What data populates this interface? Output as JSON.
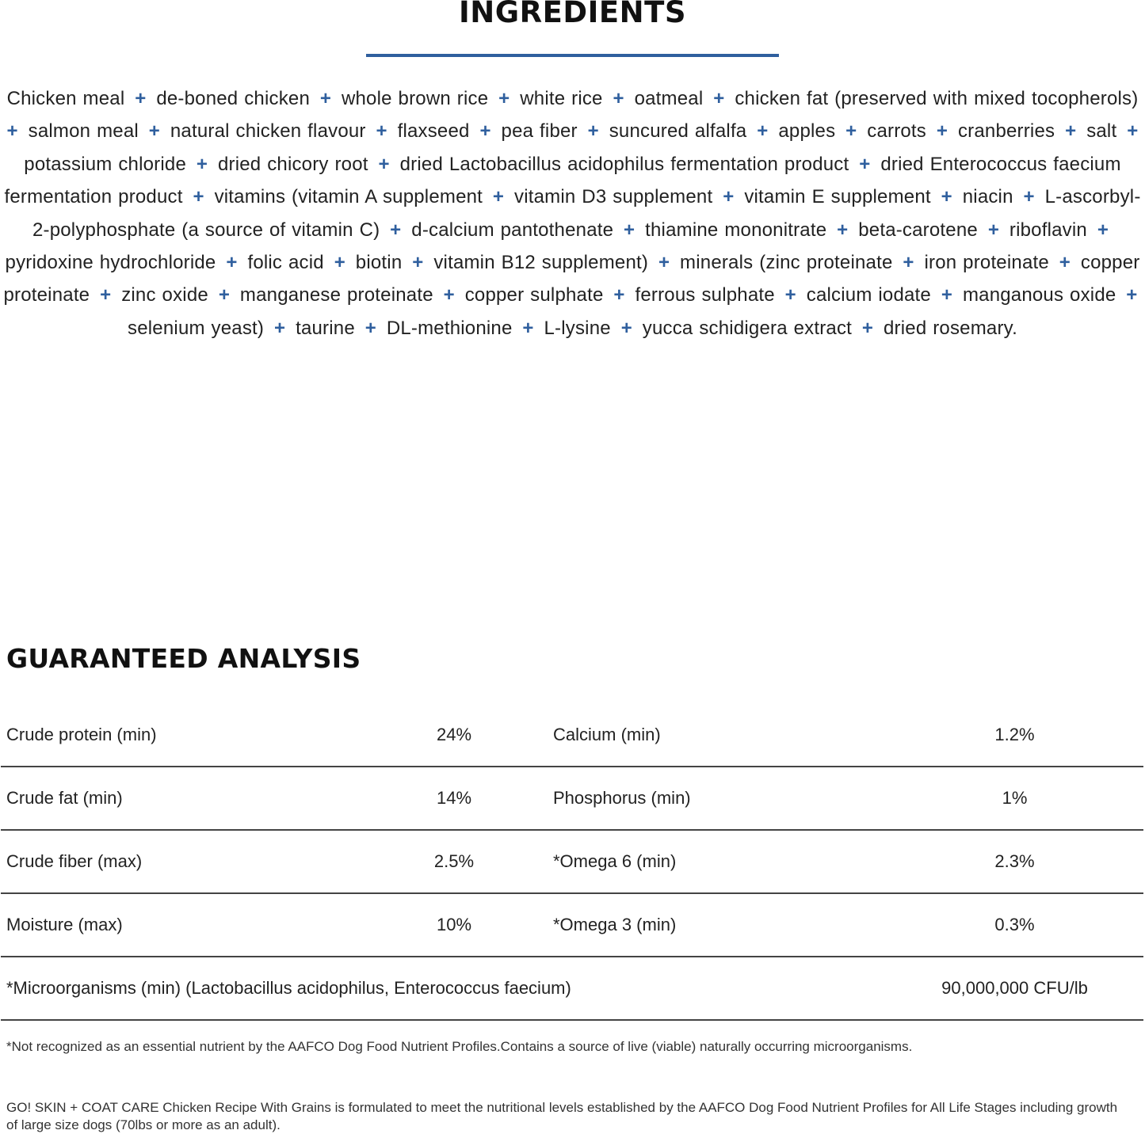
{
  "ingredients": {
    "title": "INGREDIENTS",
    "separator": "+",
    "items": [
      "Chicken meal",
      "de-boned chicken",
      "whole brown rice",
      "white rice",
      "oatmeal",
      "chicken fat (preserved with mixed tocopherols)",
      "salmon meal",
      "natural chicken flavour",
      "flaxseed",
      "pea fiber",
      "suncured alfalfa",
      "apples",
      "carrots",
      "cranberries",
      "salt",
      "potassium chloride",
      "dried chicory root",
      "dried Lactobacillus acidophilus fermentation product",
      "dried Enterococcus faecium fermentation product",
      "vitamins (vitamin A supplement",
      "vitamin D3 supplement",
      "vitamin E supplement",
      "niacin",
      "L-ascorbyl-2-polyphosphate (a source of vitamin C)",
      "d-calcium pantothenate",
      "thiamine mononitrate",
      "beta-carotene",
      "riboflavin",
      "pyridoxine hydrochloride",
      "folic acid",
      "biotin",
      "vitamin B12 supplement)",
      "minerals (zinc proteinate",
      "iron proteinate",
      "copper proteinate",
      "zinc oxide",
      "manganese proteinate",
      "copper sulphate",
      "ferrous sulphate",
      "calcium iodate",
      "manganous oxide",
      "selenium yeast)",
      "taurine",
      "DL-methionine",
      "L-lysine",
      "yucca schidigera extract",
      "dried rosemary."
    ],
    "accent_color": "#2f5f9e"
  },
  "analysis": {
    "title": "GUARANTEED ANALYSIS",
    "rows": [
      {
        "label": "Crude protein (min)",
        "value": "24%",
        "label2": "Calcium (min)",
        "value2": "1.2%"
      },
      {
        "label": "Crude fat (min)",
        "value": "14%",
        "label2": "Phosphorus (min)",
        "value2": "1%"
      },
      {
        "label": "Crude fiber (max)",
        "value": "2.5%",
        "label2": "*Omega 6 (min)",
        "value2": "2.3%"
      },
      {
        "label": "Moisture (max)",
        "value": "10%",
        "label2": "*Omega 3 (min)",
        "value2": "0.3%"
      }
    ],
    "last_row": {
      "label": "*Microorganisms (min) (Lactobacillus acidophilus, Enterococcus faecium)",
      "value": "90,000,000 CFU/lb"
    },
    "footnote": "*Not recognized as an essential nutrient by the AAFCO Dog Food Nutrient Profiles.Contains a source of live (viable) naturally occurring microorganisms.",
    "statement": "GO! SKIN + COAT CARE Chicken Recipe With Grains is formulated to meet the nutritional levels established by the AAFCO Dog Food Nutrient Profiles for All Life Stages including growth of large size dogs (70lbs or more as an adult)."
  }
}
